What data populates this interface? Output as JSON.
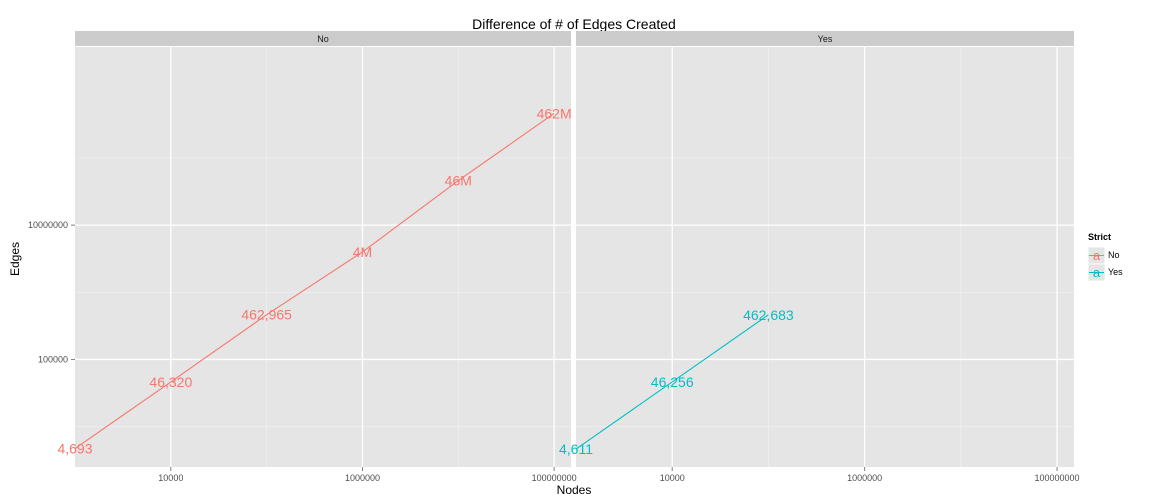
{
  "chart_data": {
    "type": "line",
    "title": "Difference of # of Edges Created",
    "xlabel": "Nodes",
    "ylabel": "Edges",
    "x_scale": "log10",
    "y_scale": "log10",
    "xlim": [
      1000,
      150000000
    ],
    "ylim": [
      2500,
      4500000000
    ],
    "x_ticks": [
      10000,
      1000000,
      100000000
    ],
    "x_tick_labels": [
      "10000",
      "1000000",
      "100000000"
    ],
    "y_ticks": [
      100000,
      10000000
    ],
    "y_tick_labels": [
      "100000",
      "10000000"
    ],
    "grid": true,
    "legend": {
      "title": "Strict",
      "position": "right",
      "symbol": "a",
      "entries": [
        {
          "label": "No",
          "color": "#F8766D"
        },
        {
          "label": "Yes",
          "color": "#00BFC4"
        }
      ]
    },
    "panels": [
      {
        "strip": "No",
        "series": [
          {
            "strict": "No",
            "color": "#F8766D",
            "x": [
              1000,
              10000,
              100000,
              1000000,
              10000000,
              100000000
            ],
            "y": [
              4693,
              46320,
              462965,
              4000000,
              46000000,
              462000000
            ],
            "labels": [
              "4,693",
              "46,320",
              "462,965",
              "4M",
              "46M",
              "462M"
            ]
          }
        ]
      },
      {
        "strip": "Yes",
        "series": [
          {
            "strict": "Yes",
            "color": "#00BFC4",
            "x": [
              1000,
              10000,
              100000
            ],
            "y": [
              4611,
              46256,
              462683
            ],
            "labels": [
              "4,611",
              "46,256",
              "462,683"
            ]
          }
        ]
      }
    ]
  }
}
